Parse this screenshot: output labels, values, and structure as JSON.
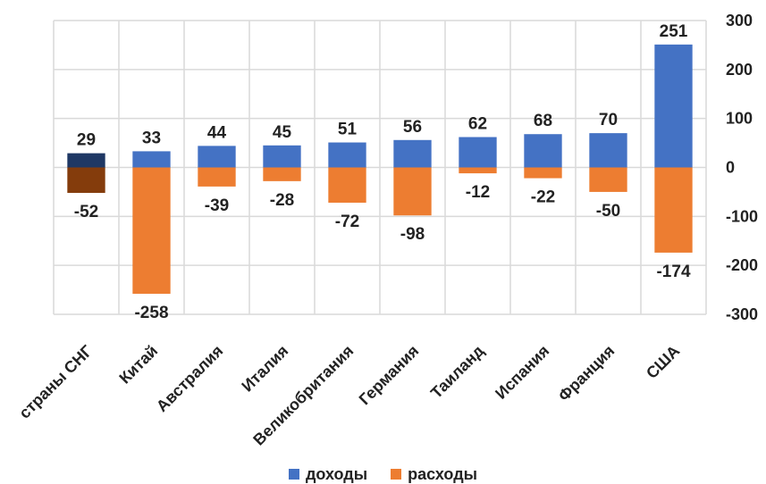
{
  "chart_data": {
    "type": "bar",
    "categories": [
      "страны СНГ",
      "Китай",
      "Австралия",
      "Италия",
      "Великобритания",
      "Германия",
      "Таиланд",
      "Испания",
      "Франция",
      "США"
    ],
    "series": [
      {
        "name": "доходы",
        "values": [
          29,
          33,
          44,
          45,
          51,
          56,
          62,
          68,
          70,
          251
        ]
      },
      {
        "name": "расходы",
        "values": [
          -52,
          -258,
          -39,
          -28,
          -72,
          -98,
          -12,
          -22,
          -50,
          -174
        ]
      }
    ],
    "ylim": [
      -300,
      300
    ],
    "yticks": [
      -300,
      -200,
      -100,
      0,
      100,
      200,
      300
    ],
    "ytick_labels": [
      "-300",
      "-200",
      "-100",
      "0",
      "100",
      "200",
      "300"
    ],
    "yaxis_side": "right",
    "grid": true,
    "legend_position": "bottom",
    "colors": {
      "доходы": "#4472C4",
      "расходы": "#ED7D31",
      "highlight_income": "#1F3864",
      "highlight_expense": "#843C0C",
      "grid": "#D9D9D9"
    },
    "highlight_category": "страны СНГ"
  }
}
